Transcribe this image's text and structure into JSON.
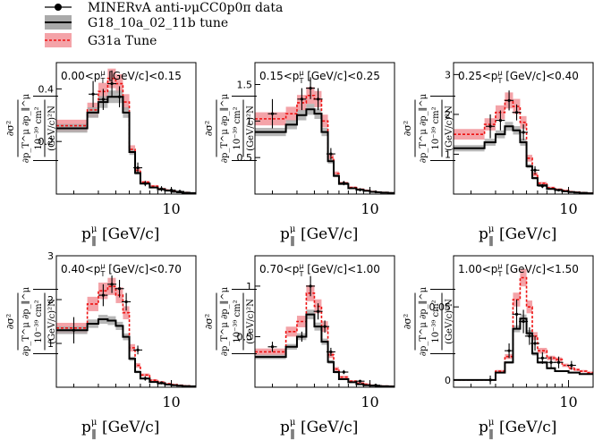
{
  "legend": {
    "data_label": "MINERvA anti-νμCC0p0π data",
    "g18_label": "G18_10a_02_11b tune",
    "g31_label": "G31a Tune"
  },
  "axis": {
    "xlabel_main": "p",
    "xlabel_sub": "∥",
    "xlabel_sup": "μ",
    "xlabel_unit": "[GeV/c]",
    "xtick": "10",
    "ylabel_num": "∂σ²",
    "ylabel_den": "∂p_T^μ ∂p_∥^μ",
    "yunit_num": "10⁻³⁹ cm²",
    "yunit_den": "(GeV/c)²N"
  },
  "colors": {
    "data": "#000000",
    "g18_band": "#aaaaaa",
    "g31_band": "#f4a3a8",
    "g31_line": "#ee1111"
  },
  "chart_data": [
    {
      "type": "line",
      "title": "0.00<p_T^μ [GeV/c]<0.15",
      "title_parts": {
        "lo": "0.00<p",
        "sub": "T",
        "sup": "μ",
        "hi": " [GeV/c]<0.15"
      },
      "xlim": [
        1.5,
        15
      ],
      "ylim": [
        0,
        0.5
      ],
      "yticks": [
        {
          "v": 0.2,
          "l": "0.2"
        },
        {
          "v": 0.4,
          "l": "0.4"
        }
      ],
      "bins": [
        1.5,
        2.5,
        3.0,
        3.5,
        4.0,
        4.5,
        5.0,
        5.5,
        6.0,
        7.0,
        8.0,
        9.0,
        10.0,
        11.0,
        12.0,
        13.5,
        15.0
      ],
      "g18": [
        0.25,
        0.31,
        0.35,
        0.37,
        0.37,
        0.31,
        0.16,
        0.08,
        0.04,
        0.025,
        0.018,
        0.013,
        0.009,
        0.007,
        0.005,
        0.004
      ],
      "g31": [
        0.26,
        0.32,
        0.39,
        0.44,
        0.42,
        0.35,
        0.17,
        0.09,
        0.045,
        0.03,
        0.02,
        0.015,
        0.01,
        0.008,
        0.006,
        0.004
      ],
      "data_x": [
        2.75,
        3.25,
        3.75,
        4.25,
        5.75,
        6.5,
        8.5,
        10.0,
        11.5
      ],
      "data_y": [
        0.38,
        0.36,
        0.42,
        0.37,
        0.1,
        0.04,
        0.02,
        0.015,
        0.01
      ],
      "data_err": [
        0.05,
        0.04,
        0.05,
        0.04,
        0.02,
        0.01,
        0.01,
        0.008,
        0.006
      ]
    },
    {
      "type": "line",
      "title": "0.15<p_T^μ [GeV/c]<0.25",
      "title_parts": {
        "lo": "0.15<p",
        "sub": "T",
        "sup": "μ",
        "hi": " [GeV/c]<0.25"
      },
      "xlim": [
        1.5,
        15
      ],
      "ylim": [
        0,
        1.8
      ],
      "yticks": [
        {
          "v": 0.5,
          "l": "0.5"
        },
        {
          "v": 1,
          "l": "1"
        },
        {
          "v": 1.5,
          "l": "1.5"
        }
      ],
      "bins": [
        1.5,
        2.5,
        3.0,
        3.5,
        4.0,
        4.5,
        5.0,
        5.5,
        6.0,
        7.0,
        8.0,
        9.0,
        10.0,
        11.0,
        12.0,
        13.5,
        15.0
      ],
      "g18": [
        0.85,
        0.95,
        1.08,
        1.16,
        1.1,
        0.85,
        0.45,
        0.25,
        0.14,
        0.08,
        0.06,
        0.045,
        0.03,
        0.025,
        0.02,
        0.015
      ],
      "g31": [
        1.03,
        1.1,
        1.25,
        1.35,
        1.3,
        1.0,
        0.5,
        0.28,
        0.15,
        0.09,
        0.065,
        0.05,
        0.035,
        0.028,
        0.022,
        0.016
      ],
      "data_x": [
        2.0,
        3.25,
        3.75,
        4.25,
        5.25,
        6.5,
        8.5,
        11.0
      ],
      "data_y": [
        1.1,
        1.3,
        1.45,
        1.3,
        0.55,
        0.15,
        0.06,
        0.03
      ],
      "data_err": [
        0.2,
        0.15,
        0.15,
        0.15,
        0.08,
        0.03,
        0.02,
        0.01
      ]
    },
    {
      "type": "line",
      "title": "0.25<p_T^μ [GeV/c]<0.40",
      "title_parts": {
        "lo": "0.25<p",
        "sub": "T",
        "sup": "μ",
        "hi": " [GeV/c]<0.40"
      },
      "xlim": [
        1.5,
        15
      ],
      "ylim": [
        0,
        3.3
      ],
      "yticks": [
        {
          "v": 1,
          "l": "1"
        },
        {
          "v": 2,
          "l": "2"
        },
        {
          "v": 3,
          "l": "3"
        }
      ],
      "bins": [
        1.5,
        2.5,
        3.0,
        3.5,
        4.0,
        4.5,
        5.0,
        5.5,
        6.0,
        7.0,
        8.0,
        9.0,
        10.0,
        11.0,
        12.0,
        13.5,
        15.0
      ],
      "g18": [
        1.15,
        1.3,
        1.5,
        1.7,
        1.6,
        1.3,
        0.7,
        0.4,
        0.22,
        0.13,
        0.1,
        0.07,
        0.05,
        0.04,
        0.03,
        0.02
      ],
      "g31": [
        1.5,
        1.75,
        2.05,
        2.35,
        2.2,
        1.8,
        0.9,
        0.5,
        0.27,
        0.16,
        0.12,
        0.09,
        0.06,
        0.05,
        0.035,
        0.025
      ],
      "data_x": [
        2.75,
        3.25,
        3.75,
        4.25,
        4.75,
        5.75,
        6.5,
        8.5
      ],
      "data_y": [
        1.7,
        1.85,
        2.35,
        2.05,
        1.55,
        0.6,
        0.2,
        0.1
      ],
      "data_err": [
        0.3,
        0.25,
        0.25,
        0.2,
        0.2,
        0.1,
        0.05,
        0.03
      ]
    },
    {
      "type": "line",
      "title": "0.40<p_T^μ [GeV/c]<0.70",
      "title_parts": {
        "lo": "0.40<p",
        "sub": "T",
        "sup": "μ",
        "hi": " [GeV/c]<0.70"
      },
      "xlim": [
        1.5,
        15
      ],
      "ylim": [
        0,
        3.0
      ],
      "yticks": [
        {
          "v": 1,
          "l": "1"
        },
        {
          "v": 2,
          "l": "2"
        },
        {
          "v": 3,
          "l": "3"
        }
      ],
      "bins": [
        1.5,
        2.5,
        3.0,
        3.5,
        4.0,
        4.5,
        5.0,
        5.5,
        6.0,
        7.0,
        8.0,
        9.0,
        10.0,
        11.0,
        12.0,
        13.5,
        15.0
      ],
      "g18": [
        1.3,
        1.45,
        1.55,
        1.52,
        1.4,
        1.15,
        0.65,
        0.35,
        0.2,
        0.12,
        0.09,
        0.06,
        0.045,
        0.035,
        0.025,
        0.02
      ],
      "g31": [
        1.35,
        1.9,
        2.2,
        2.3,
        2.1,
        1.7,
        0.9,
        0.5,
        0.28,
        0.16,
        0.12,
        0.08,
        0.06,
        0.045,
        0.032,
        0.025
      ],
      "data_x": [
        2.0,
        3.25,
        3.75,
        4.25,
        4.75,
        5.75,
        6.5,
        8.5
      ],
      "data_y": [
        1.3,
        2.1,
        2.35,
        2.25,
        1.95,
        0.85,
        0.2,
        0.1
      ],
      "data_err": [
        0.3,
        0.25,
        0.2,
        0.2,
        0.2,
        0.1,
        0.05,
        0.03
      ]
    },
    {
      "type": "line",
      "title": "0.70<p_T^μ [GeV/c]<1.00",
      "title_parts": {
        "lo": "0.70<p",
        "sub": "T",
        "sup": "μ",
        "hi": " [GeV/c]<1.00"
      },
      "xlim": [
        1.5,
        15
      ],
      "ylim": [
        0,
        1.3
      ],
      "yticks": [
        {
          "v": 0.5,
          "l": "0.5"
        },
        {
          "v": 1,
          "l": "1"
        }
      ],
      "bins": [
        1.5,
        2.5,
        3.0,
        3.5,
        4.0,
        4.5,
        5.0,
        5.5,
        6.0,
        7.0,
        8.0,
        9.0,
        10.0,
        11.0,
        12.0,
        13.5,
        15.0
      ],
      "g18": [
        0.3,
        0.4,
        0.5,
        0.72,
        0.6,
        0.45,
        0.25,
        0.15,
        0.08,
        0.05,
        0.03,
        0.02,
        0.015,
        0.012,
        0.01,
        0.008
      ],
      "g31": [
        0.35,
        0.55,
        0.65,
        0.93,
        0.8,
        0.6,
        0.32,
        0.18,
        0.1,
        0.06,
        0.04,
        0.03,
        0.02,
        0.015,
        0.012,
        0.01
      ],
      "data_x": [
        2.0,
        3.25,
        3.75,
        4.25,
        4.75,
        5.25,
        6.5,
        8.5,
        11.0
      ],
      "data_y": [
        0.4,
        0.5,
        1.0,
        0.75,
        0.6,
        0.35,
        0.15,
        0.06,
        0.02
      ],
      "data_err": [
        0.05,
        0.05,
        0.1,
        0.08,
        0.06,
        0.04,
        0.02,
        0.01,
        0.01
      ]
    },
    {
      "type": "line",
      "title": "1.00<p_T^μ [GeV/c]<1.50",
      "title_parts": {
        "lo": "1.00<p",
        "sub": "T",
        "sup": "μ",
        "hi": " [GeV/c]<1.50"
      },
      "xlim": [
        1.5,
        15
      ],
      "ylim": [
        -0.005,
        0.085
      ],
      "yticks": [
        {
          "v": 0,
          "l": "0"
        },
        {
          "v": 0.05,
          "l": "0.05"
        }
      ],
      "bins": [
        1.5,
        2.5,
        3.0,
        3.5,
        4.0,
        4.5,
        5.0,
        5.5,
        6.0,
        7.0,
        8.0,
        9.0,
        10.0,
        11.0,
        12.0,
        13.5,
        15.0
      ],
      "g18": [
        0.0,
        0.0,
        0.005,
        0.012,
        0.035,
        0.042,
        0.032,
        0.018,
        0.012,
        0.008,
        0.006,
        0.006,
        0.005,
        0.005,
        0.004,
        0.004
      ],
      "g31": [
        0.0,
        0.0,
        0.006,
        0.016,
        0.055,
        0.07,
        0.05,
        0.03,
        0.02,
        0.015,
        0.014,
        0.01,
        0.008,
        0.007,
        0.006,
        0.005
      ],
      "data_x": [
        2.75,
        3.75,
        4.25,
        4.75,
        5.25,
        5.75,
        6.5,
        7.5,
        8.5,
        10.5
      ],
      "data_y": [
        0.0,
        0.02,
        0.045,
        0.04,
        0.03,
        0.025,
        0.015,
        0.012,
        0.012,
        0.01
      ],
      "data_err": [
        0.003,
        0.005,
        0.01,
        0.008,
        0.006,
        0.005,
        0.004,
        0.004,
        0.004,
        0.003
      ]
    }
  ]
}
